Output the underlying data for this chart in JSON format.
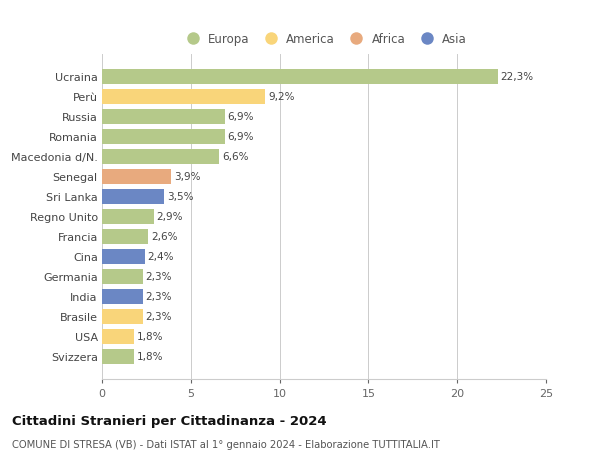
{
  "countries": [
    "Ucraina",
    "Perù",
    "Russia",
    "Romania",
    "Macedonia d/N.",
    "Senegal",
    "Sri Lanka",
    "Regno Unito",
    "Francia",
    "Cina",
    "Germania",
    "India",
    "Brasile",
    "USA",
    "Svizzera"
  ],
  "values": [
    22.3,
    9.2,
    6.9,
    6.9,
    6.6,
    3.9,
    3.5,
    2.9,
    2.6,
    2.4,
    2.3,
    2.3,
    2.3,
    1.8,
    1.8
  ],
  "labels": [
    "22,3%",
    "9,2%",
    "6,9%",
    "6,9%",
    "6,6%",
    "3,9%",
    "3,5%",
    "2,9%",
    "2,6%",
    "2,4%",
    "2,3%",
    "2,3%",
    "2,3%",
    "1,8%",
    "1,8%"
  ],
  "colors": [
    "#b5c98a",
    "#f9d57a",
    "#b5c98a",
    "#b5c98a",
    "#b5c98a",
    "#e8aa7e",
    "#6b87c4",
    "#b5c98a",
    "#b5c98a",
    "#6b87c4",
    "#b5c98a",
    "#6b87c4",
    "#f9d57a",
    "#f9d57a",
    "#b5c98a"
  ],
  "legend_labels": [
    "Europa",
    "America",
    "Africa",
    "Asia"
  ],
  "legend_colors": [
    "#b5c98a",
    "#f9d57a",
    "#e8aa7e",
    "#6b87c4"
  ],
  "xlim": [
    0,
    25
  ],
  "xticks": [
    0,
    5,
    10,
    15,
    20,
    25
  ],
  "title": "Cittadini Stranieri per Cittadinanza - 2024",
  "subtitle": "COMUNE DI STRESA (VB) - Dati ISTAT al 1° gennaio 2024 - Elaborazione TUTTITALIA.IT",
  "background_color": "#ffffff",
  "grid_color": "#cccccc"
}
